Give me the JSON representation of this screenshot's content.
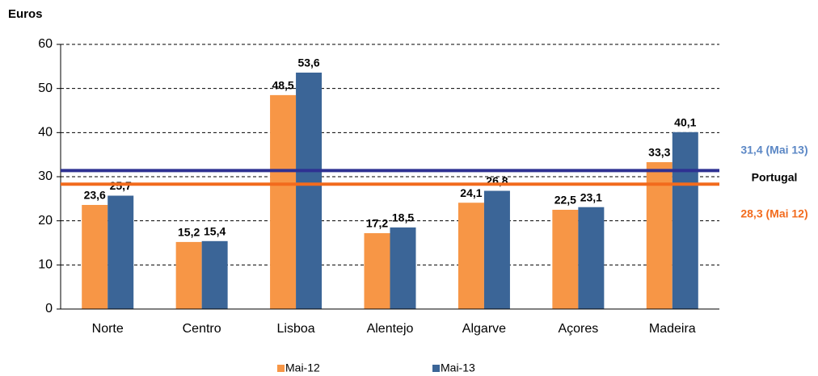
{
  "chart_data": {
    "type": "bar",
    "y_label": "Euros",
    "categories": [
      "Norte",
      "Centro",
      "Lisboa",
      "Alentejo",
      "Algarve",
      "Açores",
      "Madeira"
    ],
    "series": [
      {
        "name": "Mai-12",
        "color": "#f79646",
        "values": [
          23.6,
          15.2,
          48.5,
          17.2,
          24.1,
          22.5,
          33.3
        ],
        "value_labels": [
          "23,6",
          "15,2",
          "48,5",
          "17,2",
          "24,1",
          "22,5",
          "33,3"
        ]
      },
      {
        "name": "Mai-13",
        "color": "#3b6597",
        "values": [
          25.7,
          15.4,
          53.6,
          18.5,
          26.8,
          23.1,
          40.1
        ],
        "value_labels": [
          "25,7",
          "15,4",
          "53,6",
          "18,5",
          "26,8",
          "23,1",
          "40,1"
        ]
      }
    ],
    "reference_lines": [
      {
        "value": 31.4,
        "label": "31,4 (Mai 13)",
        "color": "#2e3192",
        "label_color": "#5b87c5"
      },
      {
        "value": 28.3,
        "label": "28,3 (Mai 12)",
        "color": "#f26b1d",
        "label_color": "#f26b1d"
      }
    ],
    "reference_name": "Portugal",
    "ylim": [
      0,
      60
    ],
    "yticks": [
      0,
      10,
      20,
      30,
      40,
      50,
      60
    ],
    "grid": true
  }
}
